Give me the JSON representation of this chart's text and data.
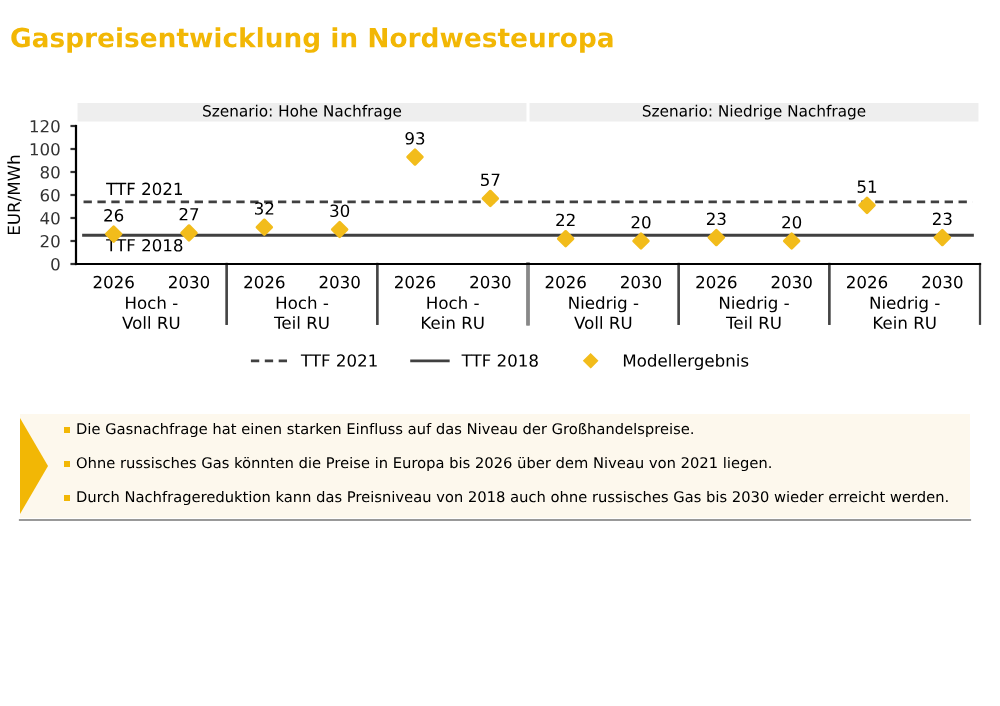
{
  "chart_data": {
    "type": "scatter",
    "title": "Gaspreisentwicklung in Nordwesteuropa",
    "ylabel": "EUR/MWh",
    "categories": [
      "2026",
      "2030",
      "2026",
      "2030",
      "2026",
      "2030",
      "2026",
      "2030",
      "2026",
      "2030",
      "2026",
      "2030"
    ],
    "series": [
      {
        "name": "Modellergebnis",
        "color": "#f2bc1b",
        "values": [
          26,
          27,
          32,
          30,
          93,
          57,
          22,
          20,
          23,
          20,
          51,
          23
        ]
      }
    ],
    "data_labels": true,
    "marker": "diamond",
    "ylim": [
      0,
      120
    ],
    "yticks": [
      0,
      20,
      40,
      60,
      80,
      100,
      120
    ],
    "grid": false,
    "legend": "bottom",
    "ref_lines": [
      {
        "axis": "y",
        "value": 54,
        "label": "TTF 2021",
        "color": "#404040",
        "line_style": "dashed"
      },
      {
        "axis": "y",
        "value": 25,
        "label": "TTF 2018",
        "color": "#404040",
        "line_style": "solid"
      }
    ],
    "annotations": [
      "Szenario: Hohe Nachfrage",
      "Szenario: Niedrige Nachfrage",
      "Hoch -\nVoll RU",
      "Hoch -\nTeil RU",
      "Hoch -\nKein RU",
      "Niedrig -\nVoll RU",
      "Niedrig -\nTeil RU",
      "Niedrig -\nKein RU",
      "Die Gasnachfrage hat einen starken Einfluss auf das Niveau der Großhandelspreise.",
      "Ohne russisches Gas könnten die Preise in Europa bis 2026 über dem Niveau von 2021 liegen.",
      "Durch Nachfragereduktion kann das Preisniveau von 2018 auch ohne russisches Gas bis 2030 wieder erreicht werden."
    ]
  }
}
